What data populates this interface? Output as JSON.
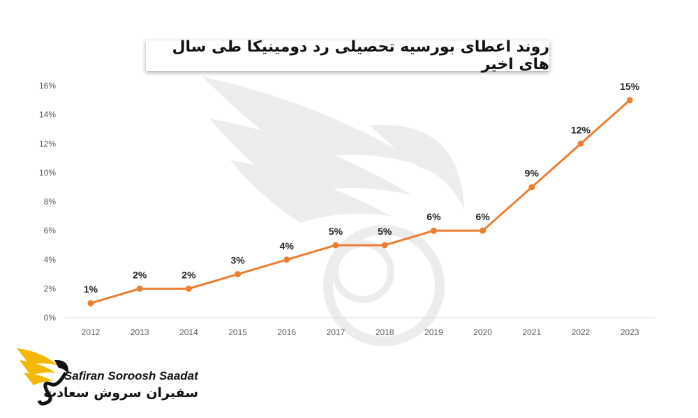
{
  "chart_data": {
    "type": "line",
    "title": "روند اعطای بورسیه تحصیلی رد دومینیکا طی سال های اخیر",
    "x": [
      "2012",
      "2013",
      "2014",
      "2015",
      "2016",
      "2017",
      "2018",
      "2019",
      "2020",
      "2021",
      "2022",
      "2023"
    ],
    "values": [
      1,
      2,
      2,
      3,
      4,
      5,
      5,
      6,
      6,
      9,
      12,
      15
    ],
    "data_labels": [
      "1%",
      "2%",
      "2%",
      "3%",
      "4%",
      "5%",
      "5%",
      "6%",
      "6%",
      "9%",
      "12%",
      "15%"
    ],
    "y_ticks": [
      "0%",
      "2%",
      "4%",
      "6%",
      "8%",
      "10%",
      "12%",
      "14%",
      "16%"
    ],
    "ylim": [
      0,
      16
    ],
    "xlabel": "",
    "ylabel": "",
    "grid": false,
    "line_color": "#ed7d31",
    "legend": "none"
  },
  "logo": {
    "brand_en": "Safiran Soroosh Saadat",
    "brand_fa": "سفیران سروش سعادت",
    "accent_color": "#f5b800"
  }
}
